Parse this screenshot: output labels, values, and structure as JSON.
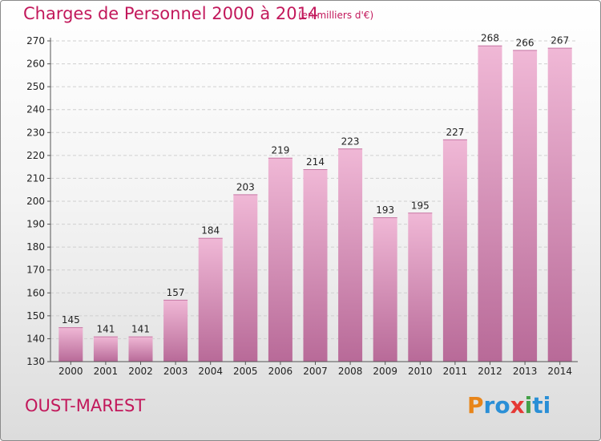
{
  "title": "Charges de Personnel 2000 à 2014",
  "subtitle": "(en milliers d'€)",
  "place": "OUST-MAREST",
  "logo": {
    "letters": [
      "P",
      "r",
      "o",
      "x",
      "i",
      "t",
      "i"
    ],
    "colors": [
      "#e8851a",
      "#2a8fd6",
      "#2a8fd6",
      "#e53935",
      "#43a047",
      "#2a8fd6",
      "#2a8fd6"
    ]
  },
  "colors": {
    "accent": "#c2185b",
    "bar_light": "#f0b8d6",
    "bar_dark": "#b86a98"
  },
  "chart_data": {
    "type": "bar",
    "title": "Charges de Personnel 2000 à 2014",
    "subtitle": "(en milliers d'€)",
    "categories": [
      "2000",
      "2001",
      "2002",
      "2003",
      "2004",
      "2005",
      "2006",
      "2007",
      "2008",
      "2009",
      "2010",
      "2011",
      "2012",
      "2013",
      "2014"
    ],
    "values": [
      145,
      141,
      141,
      157,
      184,
      203,
      219,
      214,
      223,
      193,
      195,
      227,
      268,
      266,
      267
    ],
    "ylim": [
      130,
      270
    ],
    "yticks": [
      130,
      140,
      150,
      160,
      170,
      180,
      190,
      200,
      210,
      220,
      230,
      240,
      250,
      260,
      270
    ],
    "grid": true,
    "data_labels": true
  }
}
